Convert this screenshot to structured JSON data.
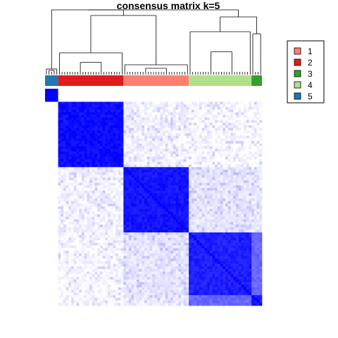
{
  "chart_data": {
    "type": "heatmap",
    "title": "consensus matrix k=5",
    "xlabel": "",
    "ylabel": "",
    "value_range": [
      0,
      1
    ],
    "colors": {
      "low": "#ffffff",
      "high": "#0000ff"
    },
    "row_order_groups": [
      5,
      2,
      1,
      4,
      3
    ],
    "group_sizes": {
      "5": 5,
      "2": 25,
      "1": 25,
      "4": 24,
      "3": 4
    },
    "legend_position": "top-right",
    "legend": [
      {
        "label": "1",
        "color": "#fb8072"
      },
      {
        "label": "2",
        "color": "#e31a1c"
      },
      {
        "label": "3",
        "color": "#33a02c"
      },
      {
        "label": "4",
        "color": "#b2df8a"
      },
      {
        "label": "5",
        "color": "#1f78b4"
      }
    ],
    "block_consensus": {
      "5-5": 1.0,
      "2-2": 0.95,
      "1-1": 0.92,
      "4-4": 0.88,
      "3-3": 0.9,
      "4-3": 0.6,
      "3-4": 0.6,
      "1-4": 0.1,
      "4-1": 0.1,
      "2-1": 0.05,
      "1-2": 0.05,
      "2-4": 0.03,
      "4-2": 0.03,
      "2-3": 0.03,
      "3-2": 0.03,
      "1-3": 0.08,
      "3-1": 0.08,
      "5-2": 0.0,
      "5-1": 0.0,
      "5-4": 0.0,
      "5-3": 0.0
    }
  }
}
